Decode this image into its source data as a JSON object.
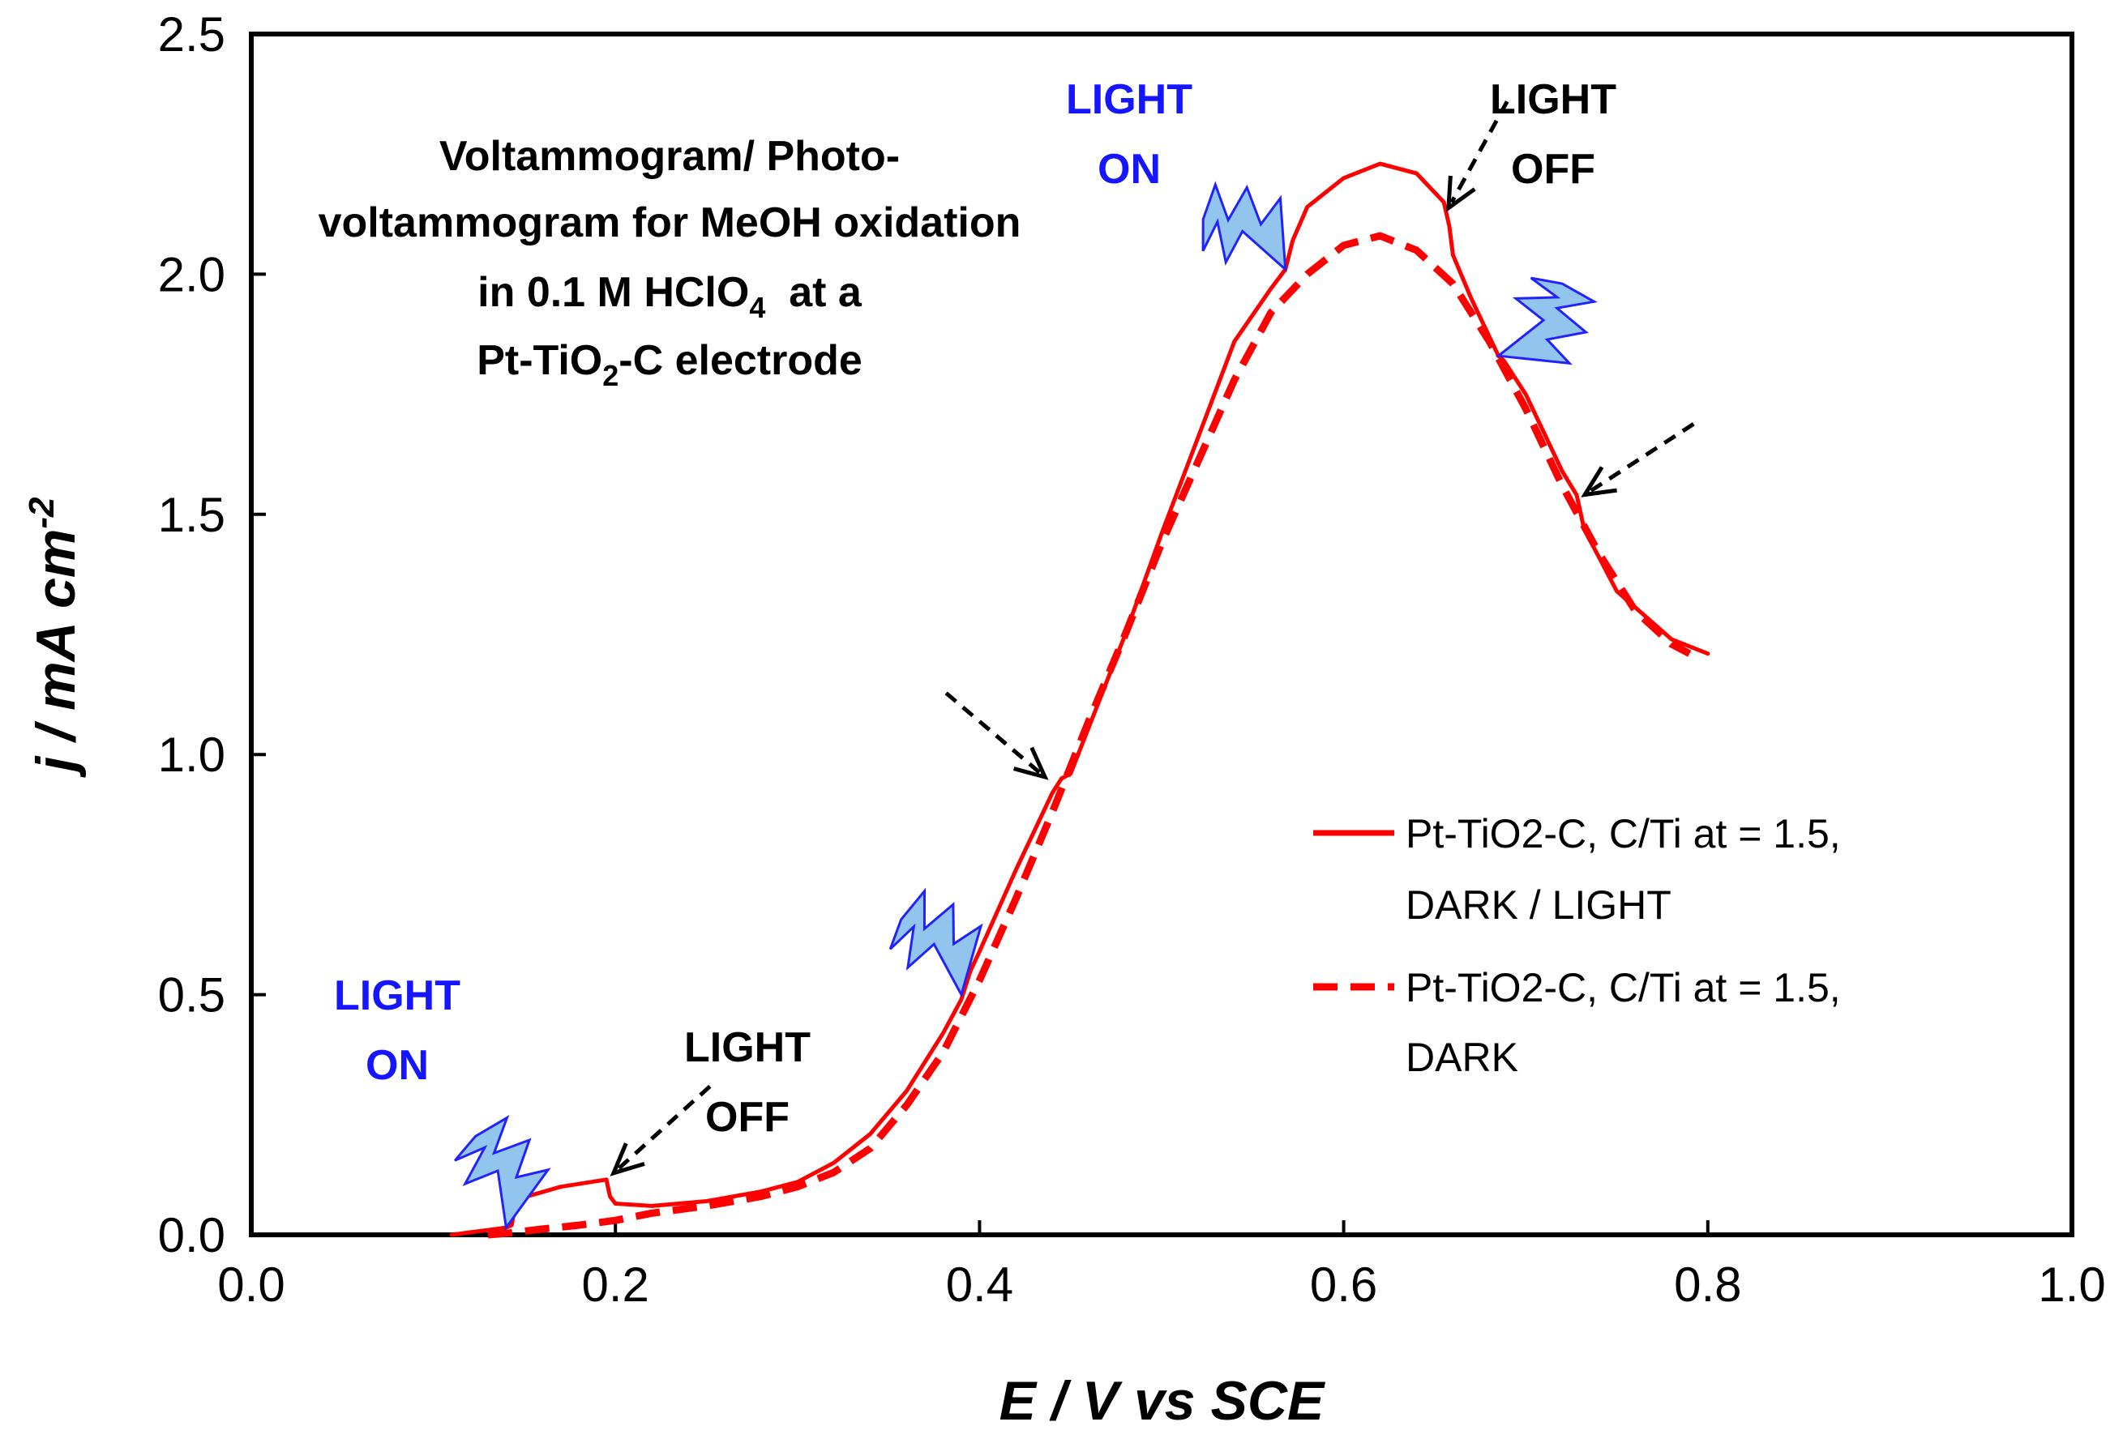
{
  "chart_data": {
    "type": "line",
    "title_lines": [
      "Voltammogram/ Photo-",
      "voltammogram for MeOH oxidation"
    ],
    "title_line3": {
      "main": "in 0.1 M HClO",
      "sub": "4",
      "tail": "  at a"
    },
    "title_line4": {
      "main": "Pt-TiO",
      "sub": "2",
      "tail": "-C electrode"
    },
    "xlabel": "E / V vs SCE",
    "ylabel": {
      "main": "j / mA cm",
      "sup": "-2"
    },
    "xlim": [
      0.0,
      1.0
    ],
    "ylim": [
      0.0,
      2.5
    ],
    "xticks": [
      "0.0",
      "0.2",
      "0.4",
      "0.6",
      "0.8",
      "1.0"
    ],
    "yticks": [
      "0.0",
      "0.5",
      "1.0",
      "1.5",
      "2.0",
      "2.5"
    ],
    "series": [
      {
        "name": "Pt-TiO2-C, C/Ti at = 1.5, DARK / LIGHT",
        "style": "solid",
        "color": "#ff0000",
        "x": [
          0.11,
          0.12,
          0.13,
          0.14,
          0.143,
          0.145,
          0.147,
          0.17,
          0.195,
          0.197,
          0.2,
          0.22,
          0.25,
          0.28,
          0.3,
          0.32,
          0.34,
          0.36,
          0.38,
          0.39,
          0.395,
          0.4,
          0.42,
          0.44,
          0.445,
          0.45,
          0.48,
          0.5,
          0.52,
          0.54,
          0.56,
          0.568,
          0.572,
          0.58,
          0.6,
          0.62,
          0.64,
          0.655,
          0.658,
          0.66,
          0.67,
          0.685,
          0.688,
          0.7,
          0.72,
          0.728,
          0.732,
          0.75,
          0.78,
          0.8
        ],
        "y": [
          0.0,
          0.005,
          0.01,
          0.015,
          0.02,
          0.06,
          0.075,
          0.1,
          0.115,
          0.08,
          0.065,
          0.06,
          0.07,
          0.09,
          0.11,
          0.15,
          0.21,
          0.3,
          0.42,
          0.49,
          0.55,
          0.59,
          0.76,
          0.92,
          0.95,
          0.96,
          1.25,
          1.46,
          1.66,
          1.86,
          1.97,
          2.01,
          2.07,
          2.14,
          2.2,
          2.23,
          2.21,
          2.15,
          2.1,
          2.04,
          1.95,
          1.83,
          1.82,
          1.75,
          1.59,
          1.54,
          1.47,
          1.34,
          1.24,
          1.21
        ]
      },
      {
        "name": "Pt-TiO2-C, C/Ti at = 1.5, DARK",
        "style": "dashed",
        "color": "#ff0000",
        "x": [
          0.13,
          0.14,
          0.16,
          0.18,
          0.2,
          0.22,
          0.25,
          0.28,
          0.3,
          0.32,
          0.34,
          0.36,
          0.38,
          0.4,
          0.42,
          0.44,
          0.46,
          0.48,
          0.5,
          0.52,
          0.54,
          0.56,
          0.58,
          0.6,
          0.62,
          0.64,
          0.66,
          0.68,
          0.7,
          0.72,
          0.74,
          0.76,
          0.78,
          0.79
        ],
        "y": [
          0.0,
          0.003,
          0.012,
          0.02,
          0.03,
          0.045,
          0.06,
          0.08,
          0.1,
          0.13,
          0.18,
          0.27,
          0.38,
          0.53,
          0.7,
          0.88,
          1.07,
          1.25,
          1.44,
          1.61,
          1.78,
          1.92,
          2.0,
          2.06,
          2.08,
          2.05,
          1.98,
          1.86,
          1.72,
          1.56,
          1.42,
          1.3,
          1.23,
          1.21
        ]
      }
    ],
    "legend": [
      {
        "line1": "Pt-TiO2-C, C/Ti at = 1.5,",
        "line2": "DARK / LIGHT",
        "style": "solid"
      },
      {
        "line1": "Pt-TiO2-C, C/Ti at = 1.5,",
        "line2": "DARK",
        "style": "dashed"
      }
    ],
    "annotations": {
      "light_on_1": [
        "LIGHT",
        "ON"
      ],
      "light_off_1": [
        "LIGHT",
        "OFF"
      ],
      "light_on_2": [
        "LIGHT",
        "ON"
      ],
      "light_off_2": [
        "LIGHT",
        "OFF"
      ]
    },
    "event_markers": [
      {
        "kind": "light-on",
        "x": 0.14,
        "y": 0.015
      },
      {
        "kind": "light-off",
        "x": 0.195,
        "y": 0.115
      },
      {
        "kind": "light-on",
        "x": 0.39,
        "y": 0.5
      },
      {
        "kind": "light-off",
        "x": 0.44,
        "y": 0.94
      },
      {
        "kind": "light-on",
        "x": 0.568,
        "y": 2.01
      },
      {
        "kind": "light-off",
        "x": 0.655,
        "y": 2.12
      },
      {
        "kind": "light-on",
        "x": 0.685,
        "y": 1.83
      },
      {
        "kind": "light-off",
        "x": 0.728,
        "y": 1.53
      }
    ],
    "colors": {
      "series": "#ff0000",
      "light_on_text": "#1515ff",
      "bolt_fill": "#92c5ee",
      "bolt_stroke": "#2222ff"
    }
  }
}
